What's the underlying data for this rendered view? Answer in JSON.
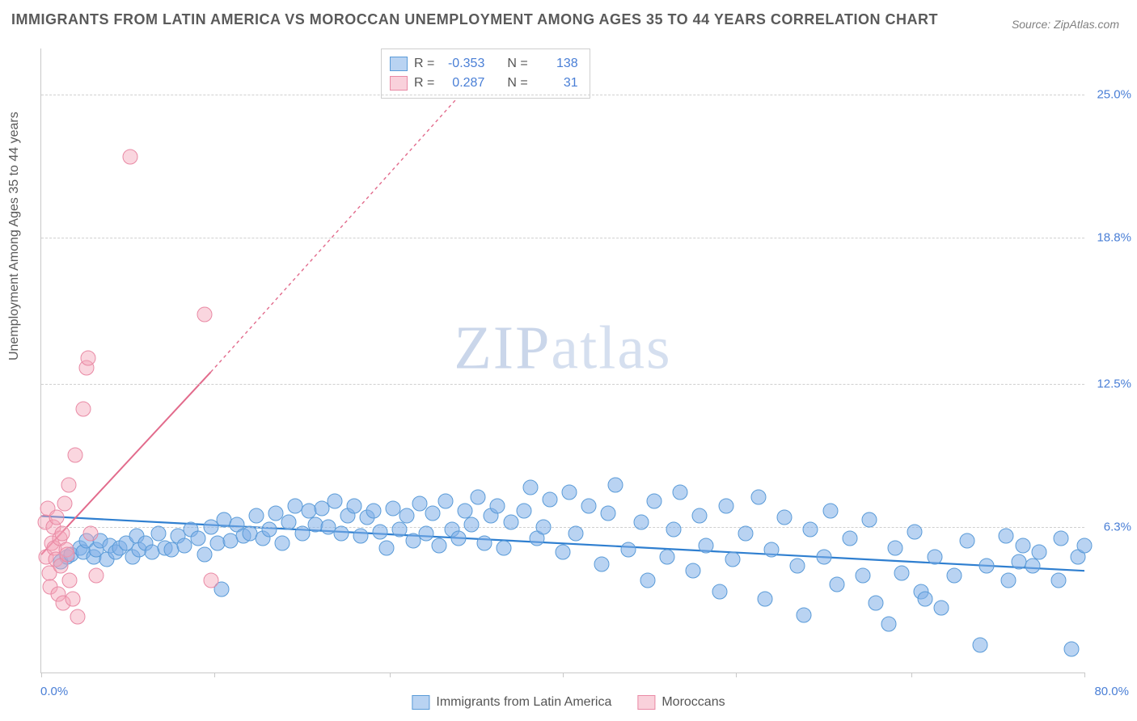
{
  "title": "IMMIGRANTS FROM LATIN AMERICA VS MOROCCAN UNEMPLOYMENT AMONG AGES 35 TO 44 YEARS CORRELATION CHART",
  "source": "Source: ZipAtlas.com",
  "ylabel": "Unemployment Among Ages 35 to 44 years",
  "watermark_a": "ZIP",
  "watermark_b": "atlas",
  "chart": {
    "type": "scatter",
    "xlim": [
      0,
      80
    ],
    "ylim": [
      0,
      27
    ],
    "xlim_labels": [
      "0.0%",
      "80.0%"
    ],
    "y_ticks": [
      {
        "v": 6.3,
        "label": "6.3%"
      },
      {
        "v": 12.5,
        "label": "12.5%"
      },
      {
        "v": 18.8,
        "label": "18.8%"
      },
      {
        "v": 25.0,
        "label": "25.0%"
      }
    ],
    "x_tick_positions": [
      0,
      13.3,
      26.7,
      40,
      53.3,
      66.7,
      80
    ],
    "grid_color": "#d0d0d0",
    "background_color": "#ffffff",
    "axis_color": "#c8c8c8",
    "series": [
      {
        "name": "Immigrants from Latin America",
        "fill": "rgba(127,175,231,0.55)",
        "stroke": "#5a9bd8",
        "marker_size": 17,
        "trend": {
          "x1": 0,
          "y1": 6.77,
          "x2": 80,
          "y2": 4.4,
          "color": "#2f7fd0",
          "width": 2.2,
          "dash": "none"
        },
        "points": [
          [
            1.5,
            4.8
          ],
          [
            2,
            5.0
          ],
          [
            2.3,
            5.1
          ],
          [
            3,
            5.4
          ],
          [
            3.2,
            5.2
          ],
          [
            3.5,
            5.7
          ],
          [
            4,
            5.0
          ],
          [
            4.2,
            5.3
          ],
          [
            4.5,
            5.7
          ],
          [
            5,
            4.9
          ],
          [
            5.3,
            5.5
          ],
          [
            5.7,
            5.2
          ],
          [
            6,
            5.4
          ],
          [
            6.5,
            5.6
          ],
          [
            7,
            5.0
          ],
          [
            7.3,
            5.9
          ],
          [
            7.5,
            5.3
          ],
          [
            8,
            5.6
          ],
          [
            8.5,
            5.2
          ],
          [
            9,
            6.0
          ],
          [
            9.5,
            5.4
          ],
          [
            10,
            5.3
          ],
          [
            10.5,
            5.9
          ],
          [
            11,
            5.5
          ],
          [
            11.5,
            6.2
          ],
          [
            12,
            5.8
          ],
          [
            12.5,
            5.1
          ],
          [
            13,
            6.3
          ],
          [
            13.5,
            5.6
          ],
          [
            14,
            6.6
          ],
          [
            14.5,
            5.7
          ],
          [
            15,
            6.4
          ],
          [
            15.5,
            5.9
          ],
          [
            13.8,
            3.6
          ],
          [
            16,
            6.0
          ],
          [
            16.5,
            6.8
          ],
          [
            17,
            5.8
          ],
          [
            17.5,
            6.2
          ],
          [
            18,
            6.9
          ],
          [
            18.5,
            5.6
          ],
          [
            19,
            6.5
          ],
          [
            19.5,
            7.2
          ],
          [
            20,
            6.0
          ],
          [
            20.5,
            7.0
          ],
          [
            21,
            6.4
          ],
          [
            21.5,
            7.1
          ],
          [
            22,
            6.3
          ],
          [
            22.5,
            7.4
          ],
          [
            23,
            6.0
          ],
          [
            23.5,
            6.8
          ],
          [
            24,
            7.2
          ],
          [
            24.5,
            5.9
          ],
          [
            25,
            6.7
          ],
          [
            25.5,
            7.0
          ],
          [
            26,
            6.1
          ],
          [
            26.5,
            5.4
          ],
          [
            27,
            7.1
          ],
          [
            27.5,
            6.2
          ],
          [
            28,
            6.8
          ],
          [
            28.5,
            5.7
          ],
          [
            29,
            7.3
          ],
          [
            29.5,
            6.0
          ],
          [
            30,
            6.9
          ],
          [
            30.5,
            5.5
          ],
          [
            31,
            7.4
          ],
          [
            31.5,
            6.2
          ],
          [
            32,
            5.8
          ],
          [
            32.5,
            7.0
          ],
          [
            33,
            6.4
          ],
          [
            33.5,
            7.6
          ],
          [
            34,
            5.6
          ],
          [
            34.5,
            6.8
          ],
          [
            35,
            7.2
          ],
          [
            35.5,
            5.4
          ],
          [
            36,
            6.5
          ],
          [
            37,
            7.0
          ],
          [
            37.5,
            8.0
          ],
          [
            38,
            5.8
          ],
          [
            38.5,
            6.3
          ],
          [
            39,
            7.5
          ],
          [
            40,
            5.2
          ],
          [
            40.5,
            7.8
          ],
          [
            41,
            6.0
          ],
          [
            42,
            7.2
          ],
          [
            43,
            4.7
          ],
          [
            43.5,
            6.9
          ],
          [
            44,
            8.1
          ],
          [
            45,
            5.3
          ],
          [
            46,
            6.5
          ],
          [
            46.5,
            4.0
          ],
          [
            47,
            7.4
          ],
          [
            48,
            5.0
          ],
          [
            48.5,
            6.2
          ],
          [
            49,
            7.8
          ],
          [
            50,
            4.4
          ],
          [
            50.5,
            6.8
          ],
          [
            51,
            5.5
          ],
          [
            52,
            3.5
          ],
          [
            52.5,
            7.2
          ],
          [
            53,
            4.9
          ],
          [
            54,
            6.0
          ],
          [
            55,
            7.6
          ],
          [
            55.5,
            3.2
          ],
          [
            56,
            5.3
          ],
          [
            57,
            6.7
          ],
          [
            58,
            4.6
          ],
          [
            58.5,
            2.5
          ],
          [
            59,
            6.2
          ],
          [
            60,
            5.0
          ],
          [
            60.5,
            7.0
          ],
          [
            61,
            3.8
          ],
          [
            62,
            5.8
          ],
          [
            63,
            4.2
          ],
          [
            63.5,
            6.6
          ],
          [
            64,
            3.0
          ],
          [
            65,
            2.1
          ],
          [
            65.5,
            5.4
          ],
          [
            66,
            4.3
          ],
          [
            67,
            6.1
          ],
          [
            67.5,
            3.5
          ],
          [
            67.8,
            3.2
          ],
          [
            68.5,
            5.0
          ],
          [
            69,
            2.8
          ],
          [
            70,
            4.2
          ],
          [
            71,
            5.7
          ],
          [
            72,
            1.2
          ],
          [
            72.5,
            4.6
          ],
          [
            74,
            5.9
          ],
          [
            74.2,
            4.0
          ],
          [
            75,
            4.8
          ],
          [
            75.3,
            5.5
          ],
          [
            76,
            4.6
          ],
          [
            76.5,
            5.2
          ],
          [
            78,
            4.0
          ],
          [
            78.2,
            5.8
          ],
          [
            79,
            1.0
          ],
          [
            79.5,
            5.0
          ],
          [
            80,
            5.5
          ]
        ]
      },
      {
        "name": "Moroccans",
        "fill": "rgba(244,164,184,0.45)",
        "stroke": "#e98aa5",
        "marker_size": 17,
        "trend": {
          "x1": 0,
          "y1": 5.1,
          "x2": 45,
          "y2": 33,
          "solid_until_x": 13,
          "solid_until_y": 13,
          "color": "#e26b8c",
          "width": 2,
          "dash": "4 4"
        },
        "points": [
          [
            0.3,
            6.5
          ],
          [
            0.4,
            5.0
          ],
          [
            0.5,
            7.1
          ],
          [
            0.6,
            4.3
          ],
          [
            0.7,
            3.7
          ],
          [
            0.8,
            5.6
          ],
          [
            0.9,
            6.3
          ],
          [
            1.0,
            5.4
          ],
          [
            1.1,
            4.9
          ],
          [
            1.2,
            6.7
          ],
          [
            1.3,
            3.4
          ],
          [
            1.4,
            5.8
          ],
          [
            1.5,
            4.6
          ],
          [
            1.6,
            6.0
          ],
          [
            1.7,
            3.0
          ],
          [
            1.8,
            7.3
          ],
          [
            1.9,
            5.3
          ],
          [
            2.0,
            5.1
          ],
          [
            2.1,
            8.1
          ],
          [
            2.2,
            4.0
          ],
          [
            2.4,
            3.2
          ],
          [
            2.6,
            9.4
          ],
          [
            2.8,
            2.4
          ],
          [
            3.2,
            11.4
          ],
          [
            3.5,
            13.2
          ],
          [
            3.6,
            13.6
          ],
          [
            3.8,
            6.0
          ],
          [
            4.2,
            4.2
          ],
          [
            6.8,
            22.3
          ],
          [
            12.5,
            15.5
          ],
          [
            13.0,
            4.0
          ]
        ]
      }
    ]
  },
  "stat_box": {
    "rows": [
      {
        "swatch": "blue",
        "r_label": "R =",
        "r": "-0.353",
        "n_label": "N =",
        "n": "138"
      },
      {
        "swatch": "pink",
        "r_label": "R =",
        "r": "0.287",
        "n_label": "N =",
        "n": "31"
      }
    ]
  },
  "legend": {
    "items": [
      {
        "swatch": "blue",
        "label": "Immigrants from Latin America"
      },
      {
        "swatch": "pink",
        "label": "Moroccans"
      }
    ]
  }
}
